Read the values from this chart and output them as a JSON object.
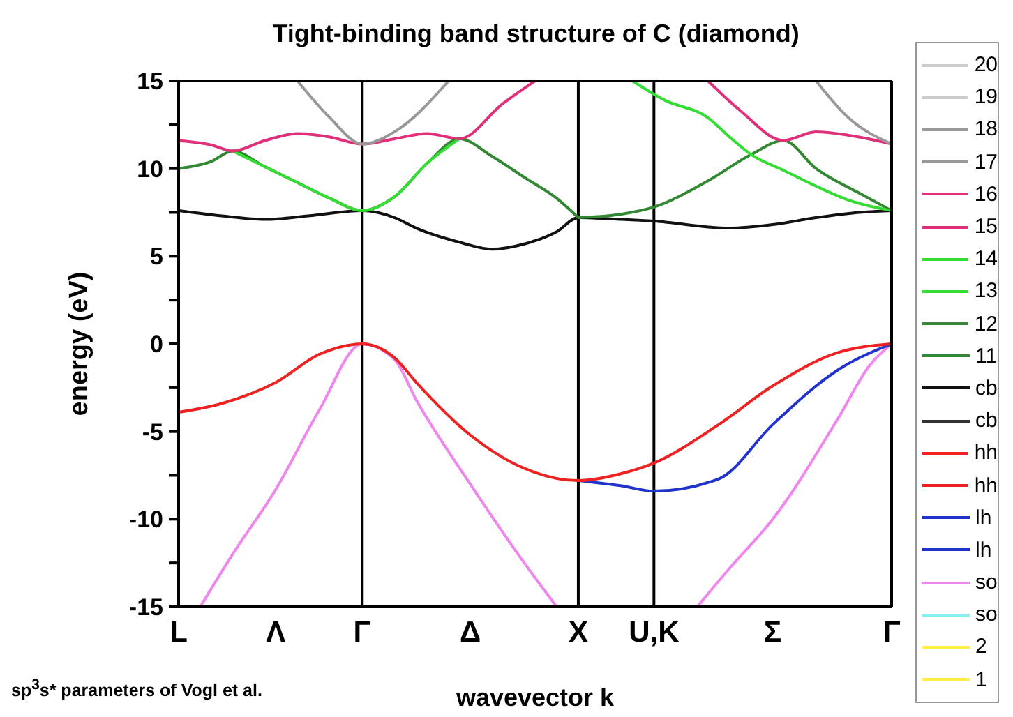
{
  "chart_data": {
    "type": "line",
    "title": "Tight-binding band structure of C (diamond)",
    "xlabel": "wavevector k",
    "ylabel": "energy (eV)",
    "annotations": [
      "sp$^{3}$s* parameters of Vogl et al."
    ],
    "categories": [
      "L",
      null,
      null,
      null,
      null,
      null,
      null,
      null,
      null,
      "Λ",
      null,
      null,
      null,
      null,
      null,
      null,
      null,
      "Γ",
      null,
      null,
      null,
      null,
      null,
      null,
      null,
      null,
      null,
      "Δ",
      null,
      null,
      null,
      null,
      null,
      null,
      null,
      null,
      null,
      "X",
      null,
      null,
      null,
      null,
      null,
      null,
      "U,K",
      null,
      null,
      null,
      null,
      null,
      null,
      null,
      null,
      null,
      null,
      "Σ",
      null,
      null,
      null,
      null,
      null,
      null,
      null,
      null,
      null,
      null,
      "Γ"
    ],
    "ylim": [
      -15,
      15
    ],
    "yticks": [
      -15,
      {
        "value": -12.5,
        "label": null
      },
      -10,
      {
        "value": -7.5,
        "label": null
      },
      -5,
      {
        "value": -2.5,
        "label": null
      },
      0,
      {
        "value": 2.5,
        "label": null
      },
      5,
      {
        "value": 7.5,
        "label": null
      },
      10,
      {
        "value": 12.5,
        "label": null
      },
      15
    ],
    "ref_lines": [
      {
        "axis": "x",
        "value": "Γ",
        "color": "#000000"
      },
      {
        "axis": "x",
        "value": "X",
        "color": "#000000"
      },
      {
        "axis": "x",
        "value": "U,K",
        "color": "#000000"
      }
    ],
    "legend": "right",
    "series": [
      {
        "name": "20",
        "color": "#cccccc",
        "values": [
          null,
          null,
          null,
          null,
          null,
          null,
          null,
          null,
          null,
          null,
          null,
          null,
          null,
          null,
          null,
          null,
          null,
          null,
          null,
          null,
          null,
          null,
          null,
          null,
          null,
          null,
          null,
          null,
          null,
          null,
          null,
          null,
          null,
          null,
          null,
          null,
          null,
          null,
          null,
          null,
          null,
          null,
          null,
          null,
          null,
          null,
          null,
          null,
          null,
          null,
          null,
          null,
          null,
          null,
          null,
          null,
          null,
          null,
          null,
          null,
          null,
          null,
          null,
          null,
          null,
          null,
          null
        ]
      },
      {
        "name": "19",
        "color": "#cccccc",
        "values": [
          null,
          null,
          null,
          null,
          null,
          null,
          null,
          null,
          null,
          null,
          null,
          null,
          null,
          null,
          null,
          null,
          null,
          null,
          null,
          null,
          null,
          null,
          null,
          null,
          null,
          null,
          null,
          null,
          null,
          null,
          null,
          null,
          null,
          null,
          null,
          null,
          null,
          null,
          null,
          null,
          null,
          null,
          null,
          null,
          null,
          null,
          null,
          null,
          null,
          null,
          null,
          null,
          null,
          null,
          null,
          null,
          null,
          null,
          null,
          null,
          null,
          null,
          null,
          null,
          null,
          null,
          null
        ]
      },
      {
        "name": "18",
        "color": "#999999",
        "values": [
          null,
          null,
          null,
          null,
          null,
          null,
          null,
          null,
          null,
          null,
          null,
          15,
          null,
          null,
          12.9,
          null,
          null,
          11.4,
          null,
          null,
          12.1,
          null,
          null,
          null,
          null,
          15,
          null,
          null,
          null,
          null,
          null,
          null,
          null,
          null,
          null,
          null,
          null,
          null,
          null,
          null,
          null,
          null,
          null,
          null,
          null,
          null,
          null,
          null,
          null,
          null,
          null,
          null,
          null,
          null,
          null,
          null,
          null,
          null,
          null,
          null,
          null,
          null,
          null,
          null,
          null,
          null,
          null
        ]
      },
      {
        "name": "17",
        "color": "#999999",
        "values": [
          null,
          null,
          null,
          null,
          null,
          null,
          null,
          null,
          null,
          null,
          null,
          null,
          null,
          null,
          null,
          null,
          null,
          null,
          null,
          null,
          null,
          null,
          null,
          null,
          null,
          null,
          null,
          null,
          null,
          null,
          null,
          null,
          null,
          null,
          null,
          null,
          null,
          null,
          null,
          null,
          null,
          null,
          null,
          null,
          null,
          null,
          null,
          null,
          null,
          null,
          null,
          null,
          null,
          null,
          null,
          null,
          null,
          null,
          null,
          15,
          null,
          null,
          12.9,
          null,
          null,
          null,
          11.4
        ]
      },
      {
        "name": "16",
        "color": "#e0307a",
        "values": [
          11.6,
          null,
          null,
          11.35,
          null,
          11.0,
          null,
          null,
          11.6,
          null,
          null,
          12.0,
          null,
          null,
          11.8,
          null,
          null,
          11.4,
          null,
          null,
          11.7,
          null,
          null,
          12.0,
          null,
          null,
          11.7,
          null,
          null,
          null,
          13.7,
          null,
          null,
          15,
          null,
          null,
          null,
          null,
          null,
          null,
          null,
          null,
          null,
          null,
          null,
          null,
          null,
          null,
          null,
          null,
          null,
          null,
          null,
          null,
          null,
          null,
          null,
          null,
          null,
          null,
          null,
          null,
          null,
          null,
          null,
          null,
          null
        ]
      },
      {
        "name": "15",
        "color": "#e0307a",
        "values": [
          null,
          null,
          null,
          null,
          null,
          null,
          null,
          null,
          null,
          null,
          null,
          null,
          null,
          null,
          null,
          null,
          null,
          null,
          null,
          null,
          null,
          null,
          null,
          null,
          null,
          null,
          null,
          null,
          null,
          null,
          null,
          null,
          null,
          null,
          null,
          null,
          null,
          null,
          null,
          null,
          null,
          null,
          null,
          null,
          null,
          null,
          null,
          null,
          null,
          15,
          null,
          null,
          13.3,
          null,
          null,
          null,
          11.6,
          null,
          null,
          12.1,
          null,
          null,
          null,
          11.8,
          null,
          null,
          11.4
        ]
      },
      {
        "name": "14",
        "color": "#33dd33",
        "values": [
          null,
          null,
          null,
          null,
          null,
          11.0,
          null,
          null,
          10.1,
          null,
          null,
          9.2,
          null,
          null,
          8.3,
          null,
          null,
          7.6,
          null,
          null,
          8.4,
          null,
          null,
          10.3,
          null,
          null,
          11.7,
          null,
          null,
          null,
          null,
          null,
          null,
          null,
          null,
          null,
          null,
          null,
          null,
          null,
          null,
          null,
          null,
          null,
          null,
          null,
          null,
          null,
          null,
          null,
          null,
          null,
          null,
          null,
          null,
          null,
          null,
          null,
          null,
          null,
          null,
          null,
          null,
          null,
          null,
          null,
          null
        ]
      },
      {
        "name": "13",
        "color": "#33dd33",
        "values": [
          null,
          null,
          null,
          null,
          null,
          null,
          null,
          null,
          null,
          null,
          null,
          null,
          null,
          null,
          null,
          null,
          null,
          null,
          null,
          null,
          null,
          null,
          null,
          null,
          null,
          null,
          null,
          null,
          null,
          null,
          null,
          null,
          null,
          null,
          null,
          null,
          null,
          null,
          null,
          null,
          null,
          null,
          15,
          null,
          null,
          13.9,
          null,
          null,
          null,
          12.9,
          null,
          11.8,
          null,
          10.8,
          null,
          null,
          9.9,
          null,
          null,
          9.0,
          null,
          null,
          8.2,
          null,
          null,
          null,
          7.6
        ]
      },
      {
        "name": "12",
        "color": "#338833",
        "values": [
          10.0,
          null,
          null,
          10.4,
          null,
          11.0,
          null,
          null,
          10.1,
          null,
          null,
          9.2,
          null,
          null,
          8.3,
          null,
          null,
          7.6,
          null,
          null,
          8.4,
          null,
          null,
          10.3,
          null,
          null,
          11.7,
          null,
          null,
          10.7,
          null,
          null,
          9.5,
          null,
          null,
          8.3,
          null,
          7.2,
          null,
          null,
          null,
          null,
          null,
          null,
          null,
          null,
          null,
          null,
          null,
          null,
          null,
          null,
          null,
          null,
          null,
          null,
          null,
          null,
          null,
          null,
          null,
          null,
          null,
          null,
          null,
          null,
          null
        ]
      },
      {
        "name": "11",
        "color": "#338833",
        "values": [
          null,
          null,
          null,
          null,
          null,
          null,
          null,
          null,
          null,
          null,
          null,
          null,
          null,
          null,
          null,
          null,
          null,
          null,
          null,
          null,
          null,
          null,
          null,
          null,
          null,
          null,
          null,
          null,
          null,
          null,
          null,
          null,
          null,
          null,
          null,
          null,
          null,
          7.2,
          null,
          null,
          null,
          7.4,
          null,
          null,
          7.8,
          null,
          null,
          null,
          null,
          9.3,
          null,
          null,
          null,
          10.8,
          null,
          null,
          11.6,
          null,
          null,
          10.0,
          null,
          null,
          null,
          8.6,
          null,
          null,
          7.6
        ]
      },
      {
        "name": "cb",
        "color": "#111111",
        "values": [
          7.6,
          null,
          null,
          null,
          7.3,
          null,
          null,
          null,
          7.1,
          null,
          null,
          null,
          7.3,
          null,
          null,
          null,
          null,
          7.6,
          null,
          null,
          7.2,
          null,
          6.6,
          null,
          null,
          null,
          5.8,
          null,
          null,
          5.4,
          null,
          null,
          5.7,
          null,
          null,
          6.4,
          null,
          7.2,
          null,
          null,
          null,
          7.1,
          null,
          null,
          7.0,
          null,
          null,
          null,
          null,
          null,
          null,
          6.6,
          null,
          null,
          null,
          6.8,
          null,
          null,
          null,
          7.2,
          null,
          null,
          null,
          7.5,
          null,
          null,
          7.6
        ]
      },
      {
        "name": "cb",
        "color": "#333333",
        "values": [
          null,
          null,
          null,
          null,
          null,
          null,
          null,
          null,
          null,
          null,
          null,
          null,
          null,
          null,
          null,
          null,
          null,
          null,
          null,
          null,
          null,
          null,
          null,
          null,
          null,
          null,
          null,
          null,
          null,
          null,
          null,
          null,
          null,
          null,
          null,
          null,
          null,
          null,
          null,
          null,
          null,
          null,
          null,
          null,
          null,
          null,
          null,
          null,
          null,
          null,
          null,
          null,
          null,
          null,
          null,
          null,
          null,
          null,
          null,
          null,
          null,
          null,
          null,
          null,
          null,
          null,
          null
        ]
      },
      {
        "name": "hh",
        "color": "#ee2222",
        "values": [
          -3.9,
          null,
          null,
          null,
          -3.4,
          null,
          null,
          null,
          null,
          -2.2,
          null,
          null,
          null,
          -0.6,
          null,
          null,
          null,
          0,
          null,
          null,
          -0.8,
          null,
          -2.2,
          null,
          null,
          null,
          null,
          -5.2,
          null,
          null,
          null,
          null,
          -7.1,
          null,
          null,
          null,
          null,
          -7.8,
          null,
          null,
          null,
          -7.4,
          null,
          null,
          -6.8,
          null,
          null,
          null,
          null,
          null,
          -4.6,
          null,
          null,
          null,
          null,
          -2.4,
          null,
          null,
          null,
          null,
          null,
          -0.5,
          null,
          null,
          null,
          null,
          0
        ]
      },
      {
        "name": "hh",
        "color": "#ee2222",
        "values": [
          null,
          null,
          null,
          null,
          null,
          null,
          null,
          null,
          null,
          null,
          null,
          null,
          null,
          null,
          null,
          null,
          null,
          null,
          null,
          null,
          null,
          null,
          null,
          null,
          null,
          null,
          null,
          null,
          null,
          null,
          null,
          null,
          null,
          null,
          null,
          null,
          null,
          null,
          null,
          null,
          null,
          null,
          null,
          null,
          null,
          null,
          null,
          null,
          null,
          null,
          null,
          null,
          null,
          null,
          null,
          null,
          null,
          null,
          null,
          null,
          null,
          null,
          null,
          null,
          null,
          null,
          null
        ]
      },
      {
        "name": "lh",
        "color": "#2233cc",
        "values": [
          null,
          null,
          null,
          null,
          null,
          null,
          null,
          null,
          null,
          null,
          null,
          null,
          null,
          null,
          null,
          null,
          null,
          null,
          null,
          null,
          null,
          null,
          null,
          null,
          null,
          null,
          null,
          null,
          null,
          null,
          null,
          null,
          null,
          null,
          null,
          null,
          null,
          -7.8,
          null,
          null,
          null,
          -8.1,
          null,
          null,
          -8.4,
          null,
          null,
          null,
          null,
          null,
          -7.7,
          null,
          null,
          null,
          null,
          -4.6,
          null,
          null,
          null,
          null,
          null,
          -1.5,
          null,
          null,
          null,
          null,
          0
        ]
      },
      {
        "name": "lh",
        "color": "#2233cc",
        "values": [
          null,
          null,
          null,
          null,
          null,
          null,
          null,
          null,
          null,
          null,
          null,
          null,
          null,
          null,
          null,
          null,
          null,
          null,
          null,
          null,
          null,
          null,
          null,
          null,
          null,
          null,
          null,
          null,
          null,
          null,
          null,
          null,
          null,
          null,
          null,
          null,
          null,
          null,
          null,
          null,
          null,
          null,
          null,
          null,
          null,
          null,
          null,
          null,
          null,
          null,
          null,
          null,
          null,
          null,
          null,
          null,
          null,
          null,
          null,
          null,
          null,
          null,
          null,
          null,
          null,
          null,
          null
        ]
      },
      {
        "name": "so",
        "color": "#ee88ee",
        "values": [
          null,
          null,
          -15,
          null,
          null,
          -12.0,
          null,
          null,
          null,
          -8.3,
          null,
          null,
          null,
          -3.8,
          null,
          null,
          null,
          0,
          null,
          null,
          -0.9,
          null,
          -3.2,
          null,
          null,
          null,
          null,
          -8.0,
          null,
          null,
          null,
          null,
          -12.5,
          null,
          null,
          -15,
          null,
          null,
          null,
          null,
          null,
          null,
          null,
          null,
          null,
          null,
          null,
          null,
          -15,
          null,
          null,
          -12.8,
          null,
          null,
          null,
          -10.0,
          null,
          null,
          null,
          null,
          null,
          -4.3,
          null,
          null,
          -1.2,
          null,
          0
        ]
      },
      {
        "name": "so",
        "color": "#88eeee",
        "values": [
          null,
          null,
          null,
          null,
          null,
          null,
          null,
          null,
          null,
          null,
          null,
          null,
          null,
          null,
          null,
          null,
          null,
          null,
          null,
          null,
          null,
          null,
          null,
          null,
          null,
          null,
          null,
          null,
          null,
          null,
          null,
          null,
          null,
          null,
          null,
          null,
          null,
          null,
          null,
          null,
          null,
          null,
          null,
          null,
          null,
          null,
          null,
          null,
          null,
          null,
          null,
          null,
          null,
          null,
          null,
          null,
          null,
          null,
          null,
          null,
          null,
          null,
          null,
          null,
          null,
          null,
          null
        ]
      },
      {
        "name": "2",
        "color": "#ffee44",
        "values": [
          null,
          null,
          null,
          null,
          null,
          null,
          null,
          null,
          null,
          null,
          null,
          null,
          null,
          null,
          null,
          null,
          null,
          null,
          null,
          null,
          null,
          null,
          null,
          null,
          null,
          null,
          null,
          null,
          null,
          null,
          null,
          null,
          null,
          null,
          null,
          null,
          null,
          null,
          null,
          null,
          null,
          null,
          null,
          null,
          null,
          null,
          null,
          null,
          null,
          null,
          null,
          null,
          null,
          null,
          null,
          null,
          null,
          null,
          null,
          null,
          null,
          null,
          null,
          null,
          null,
          null,
          null
        ]
      },
      {
        "name": "1",
        "color": "#ffee44",
        "values": [
          null,
          null,
          null,
          null,
          null,
          null,
          null,
          null,
          null,
          null,
          null,
          null,
          null,
          null,
          null,
          null,
          null,
          null,
          null,
          null,
          null,
          null,
          null,
          null,
          null,
          null,
          null,
          null,
          null,
          null,
          null,
          null,
          null,
          null,
          null,
          null,
          null,
          null,
          null,
          null,
          null,
          null,
          null,
          null,
          null,
          null,
          null,
          null,
          null,
          null,
          null,
          null,
          null,
          null,
          null,
          null,
          null,
          null,
          null,
          null,
          null,
          null,
          null,
          null,
          null,
          null,
          null
        ]
      }
    ]
  }
}
